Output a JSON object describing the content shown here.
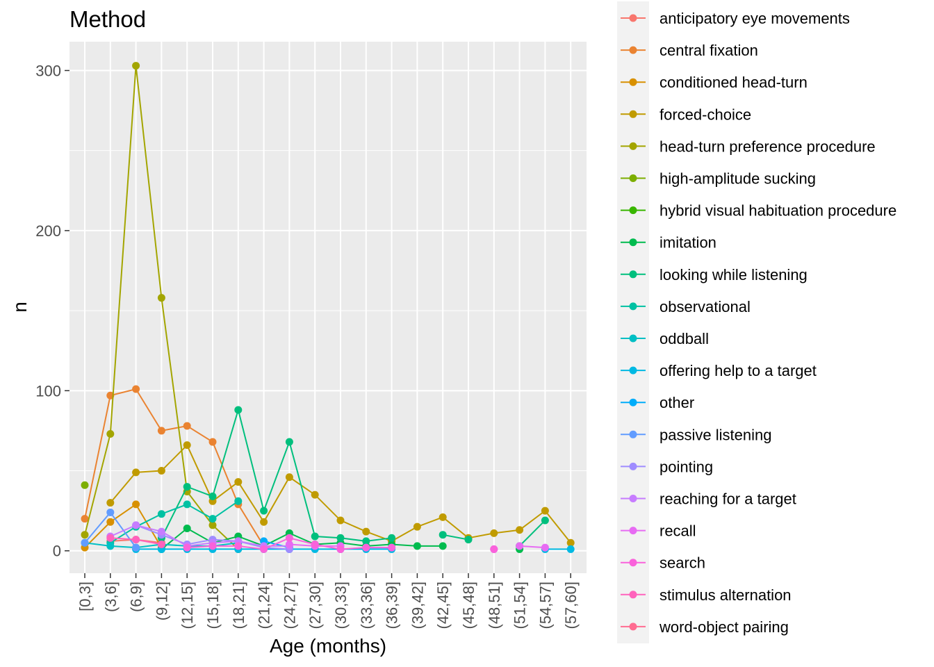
{
  "chart_data": {
    "type": "line",
    "title": "Method",
    "xlabel": "Age (months)",
    "ylabel": "n",
    "ylim": [
      -14,
      318
    ],
    "yticks": [
      0,
      100,
      200,
      300
    ],
    "categories": [
      "[0,3]",
      "(3,6]",
      "(6,9]",
      "(9,12]",
      "(12,15]",
      "(15,18]",
      "(18,21]",
      "(21,24]",
      "(24,27]",
      "(27,30]",
      "(30,33]",
      "(33,36]",
      "(36,39]",
      "(39,42]",
      "(42,45]",
      "(45,48]",
      "(48,51]",
      "(51,54]",
      "(54,57]",
      "(57,60]"
    ],
    "grid": true,
    "legend_position": "right",
    "series": [
      {
        "name": "anticipatory eye movements",
        "color": "#F8766D",
        "values": [
          null,
          6,
          7,
          5,
          null,
          null,
          null,
          null,
          null,
          null,
          null,
          null,
          null,
          null,
          null,
          null,
          null,
          null,
          null,
          null
        ]
      },
      {
        "name": "central fixation",
        "color": "#EA8331",
        "values": [
          20,
          97,
          101,
          75,
          78,
          68,
          29,
          3,
          null,
          null,
          null,
          null,
          null,
          null,
          null,
          null,
          null,
          null,
          null,
          null
        ]
      },
      {
        "name": "conditioned head-turn",
        "color": "#D89000",
        "values": [
          2,
          18,
          29,
          2,
          null,
          null,
          null,
          null,
          null,
          null,
          null,
          null,
          null,
          null,
          null,
          null,
          null,
          null,
          null,
          null
        ]
      },
      {
        "name": "forced-choice",
        "color": "#C09B00",
        "values": [
          null,
          30,
          49,
          50,
          66,
          31,
          43,
          18,
          46,
          35,
          19,
          12,
          6,
          15,
          21,
          8,
          11,
          13,
          25,
          5
        ]
      },
      {
        "name": "head-turn preference procedure",
        "color": "#A3A500",
        "values": [
          10,
          73,
          303,
          158,
          37,
          16,
          1,
          null,
          null,
          null,
          null,
          null,
          null,
          null,
          null,
          null,
          null,
          null,
          null,
          null
        ]
      },
      {
        "name": "high-amplitude sucking",
        "color": "#7CAE00",
        "values": [
          41,
          null,
          null,
          null,
          null,
          null,
          null,
          null,
          null,
          null,
          null,
          null,
          null,
          null,
          null,
          null,
          null,
          null,
          null,
          null
        ]
      },
      {
        "name": "hybrid visual habituation procedure",
        "color": "#39B600",
        "values": [
          null,
          null,
          null,
          null,
          null,
          null,
          null,
          null,
          null,
          null,
          null,
          null,
          null,
          null,
          null,
          null,
          null,
          null,
          null,
          null
        ]
      },
      {
        "name": "imitation",
        "color": "#00BB4E",
        "values": [
          null,
          null,
          null,
          1,
          14,
          5,
          9,
          3,
          11,
          4,
          5,
          3,
          4,
          3,
          3,
          null,
          null,
          1,
          null,
          null
        ]
      },
      {
        "name": "looking while listening",
        "color": "#00BF7D",
        "values": [
          null,
          null,
          null,
          8,
          40,
          34,
          88,
          25,
          68,
          9,
          8,
          6,
          8,
          null,
          10,
          7,
          null,
          3,
          19,
          null
        ]
      },
      {
        "name": "observational",
        "color": "#00C1A3",
        "values": [
          null,
          5,
          15,
          23,
          29,
          20,
          31,
          null,
          null,
          null,
          null,
          null,
          null,
          null,
          null,
          null,
          null,
          null,
          null,
          null
        ]
      },
      {
        "name": "oddball",
        "color": "#00BFC4",
        "values": [
          5,
          3,
          2,
          4,
          3,
          3,
          5,
          null,
          null,
          null,
          null,
          null,
          null,
          null,
          null,
          null,
          null,
          null,
          null,
          null
        ]
      },
      {
        "name": "offering help to a target",
        "color": "#00B9E3",
        "values": [
          null,
          null,
          1,
          1,
          1,
          1,
          1,
          1,
          1,
          1,
          1,
          1,
          1,
          null,
          null,
          null,
          null,
          null,
          1,
          1
        ]
      },
      {
        "name": "other",
        "color": "#00ADFA",
        "values": [
          null,
          null,
          null,
          null,
          null,
          null,
          null,
          6,
          2,
          null,
          null,
          2,
          2,
          null,
          null,
          null,
          null,
          null,
          null,
          null
        ]
      },
      {
        "name": "passive listening",
        "color": "#619CFF",
        "values": [
          5,
          24,
          2,
          null,
          null,
          null,
          null,
          null,
          null,
          null,
          null,
          null,
          null,
          null,
          null,
          null,
          null,
          null,
          null,
          null
        ]
      },
      {
        "name": "pointing",
        "color": "#9F8CFF",
        "values": [
          null,
          null,
          16,
          10,
          4,
          7,
          6,
          2,
          1,
          null,
          null,
          null,
          null,
          null,
          null,
          null,
          null,
          null,
          null,
          null
        ]
      },
      {
        "name": "reaching for a target",
        "color": "#C77CFF",
        "values": [
          null,
          9,
          16,
          12,
          3,
          5,
          6,
          3,
          3,
          null,
          1,
          null,
          null,
          null,
          null,
          null,
          1,
          null,
          null,
          null
        ]
      },
      {
        "name": "recall",
        "color": "#E76BF3",
        "values": [
          null,
          null,
          null,
          null,
          null,
          null,
          null,
          null,
          4,
          3,
          3,
          null,
          null,
          null,
          null,
          null,
          null,
          3,
          2,
          null
        ]
      },
      {
        "name": "search",
        "color": "#FA62DB",
        "values": [
          null,
          null,
          null,
          null,
          2,
          3,
          3,
          1,
          8,
          4,
          1,
          2,
          2,
          null,
          null,
          null,
          1,
          null,
          null,
          null
        ]
      },
      {
        "name": "stimulus alternation",
        "color": "#FF62BC",
        "values": [
          null,
          8,
          7,
          4,
          null,
          null,
          null,
          null,
          null,
          null,
          null,
          null,
          null,
          null,
          null,
          null,
          null,
          null,
          null,
          null
        ]
      },
      {
        "name": "word-object pairing",
        "color": "#FF6C91",
        "values": [
          null,
          null,
          null,
          null,
          null,
          null,
          null,
          null,
          null,
          null,
          null,
          null,
          null,
          null,
          null,
          null,
          null,
          null,
          null,
          null
        ]
      }
    ]
  }
}
